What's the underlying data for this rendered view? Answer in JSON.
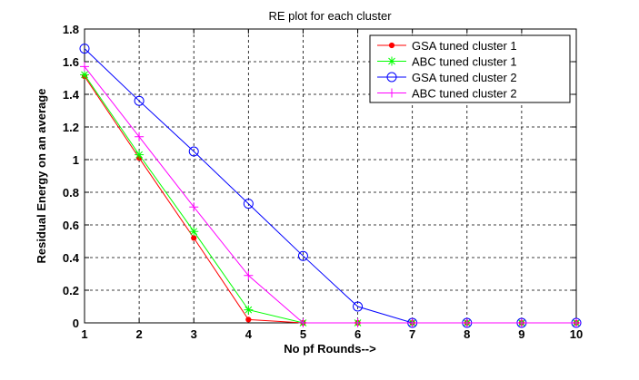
{
  "chart_data": {
    "type": "line",
    "title": "RE plot for each cluster",
    "xlabel": "No pf Rounds-->",
    "ylabel": "Residual Energy on an average",
    "xlim": [
      1,
      10
    ],
    "ylim": [
      0,
      1.8
    ],
    "x_ticks": [
      "1",
      "2",
      "3",
      "4",
      "5",
      "6",
      "7",
      "8",
      "9",
      "10"
    ],
    "y_ticks": [
      "0",
      "0.2",
      "0.4",
      "0.6",
      "0.8",
      "1",
      "1.2",
      "1.4",
      "1.6",
      "1.8"
    ],
    "grid": true,
    "legend_position": "top-right",
    "x": [
      1,
      2,
      3,
      4,
      5,
      6,
      7,
      8,
      9,
      10
    ],
    "series": [
      {
        "name": "GSA tuned cluster 1",
        "color": "#ff0000",
        "marker": "dot",
        "values": [
          1.51,
          1.01,
          0.52,
          0.02,
          0,
          0,
          0,
          0,
          0,
          0
        ]
      },
      {
        "name": "ABC tuned cluster 1",
        "color": "#00ff00",
        "marker": "star",
        "values": [
          1.52,
          1.03,
          0.56,
          0.08,
          0,
          0,
          0,
          0,
          0,
          0
        ]
      },
      {
        "name": "GSA tuned cluster 2",
        "color": "#0000ff",
        "marker": "circle",
        "values": [
          1.68,
          1.36,
          1.05,
          0.73,
          0.41,
          0.1,
          0,
          0,
          0,
          0
        ]
      },
      {
        "name": "ABC tuned cluster 2",
        "color": "#ff00ff",
        "marker": "plus",
        "values": [
          1.57,
          1.14,
          0.71,
          0.29,
          0,
          0,
          0,
          0,
          0,
          0
        ]
      }
    ]
  }
}
